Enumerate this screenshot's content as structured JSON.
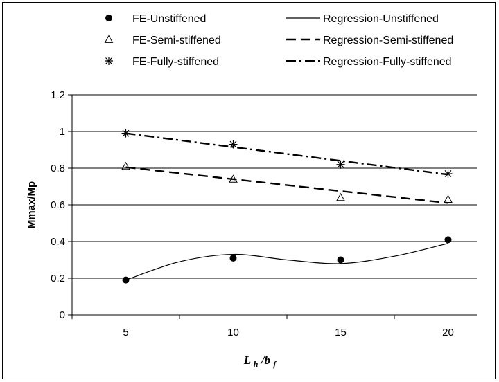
{
  "chart_data": {
    "type": "scatter",
    "categories": [
      "5",
      "10",
      "15",
      "20"
    ],
    "x": [
      5,
      10,
      15,
      20
    ],
    "ylabel": "Mmax/Mp",
    "xlabel": {
      "main": "L",
      "sub_h": "h",
      "slash": "/b",
      "sub_f": "f"
    },
    "ylim": [
      0,
      1.2
    ],
    "yticks": [
      "0",
      "0.2",
      "0.4",
      "0.6",
      "0.8",
      "1",
      "1.2"
    ],
    "grid": "horizontal",
    "legend_position": "top",
    "series": [
      {
        "name": "FE-Unstiffened",
        "marker": "circle",
        "values": [
          0.19,
          0.31,
          0.3,
          0.41
        ]
      },
      {
        "name": "FE-Semi-stiffened",
        "marker": "triangle",
        "values": [
          0.81,
          0.74,
          0.64,
          0.63
        ]
      },
      {
        "name": "FE-Fully-stiffened",
        "marker": "star",
        "values": [
          0.99,
          0.93,
          0.82,
          0.77
        ]
      }
    ],
    "regressions": [
      {
        "name": "Regression-Unstiffened",
        "style": "solid",
        "x": [
          5,
          7.5,
          10,
          12.5,
          15,
          17.5,
          20
        ],
        "values": [
          0.19,
          0.29,
          0.33,
          0.3,
          0.28,
          0.32,
          0.39
        ]
      },
      {
        "name": "Regression-Semi-stiffened",
        "style": "dash",
        "x": [
          5,
          20
        ],
        "values": [
          0.805,
          0.61
        ]
      },
      {
        "name": "Regression-Fully-stiffened",
        "style": "dashdot",
        "x": [
          5,
          20
        ],
        "values": [
          0.99,
          0.765
        ]
      }
    ]
  }
}
